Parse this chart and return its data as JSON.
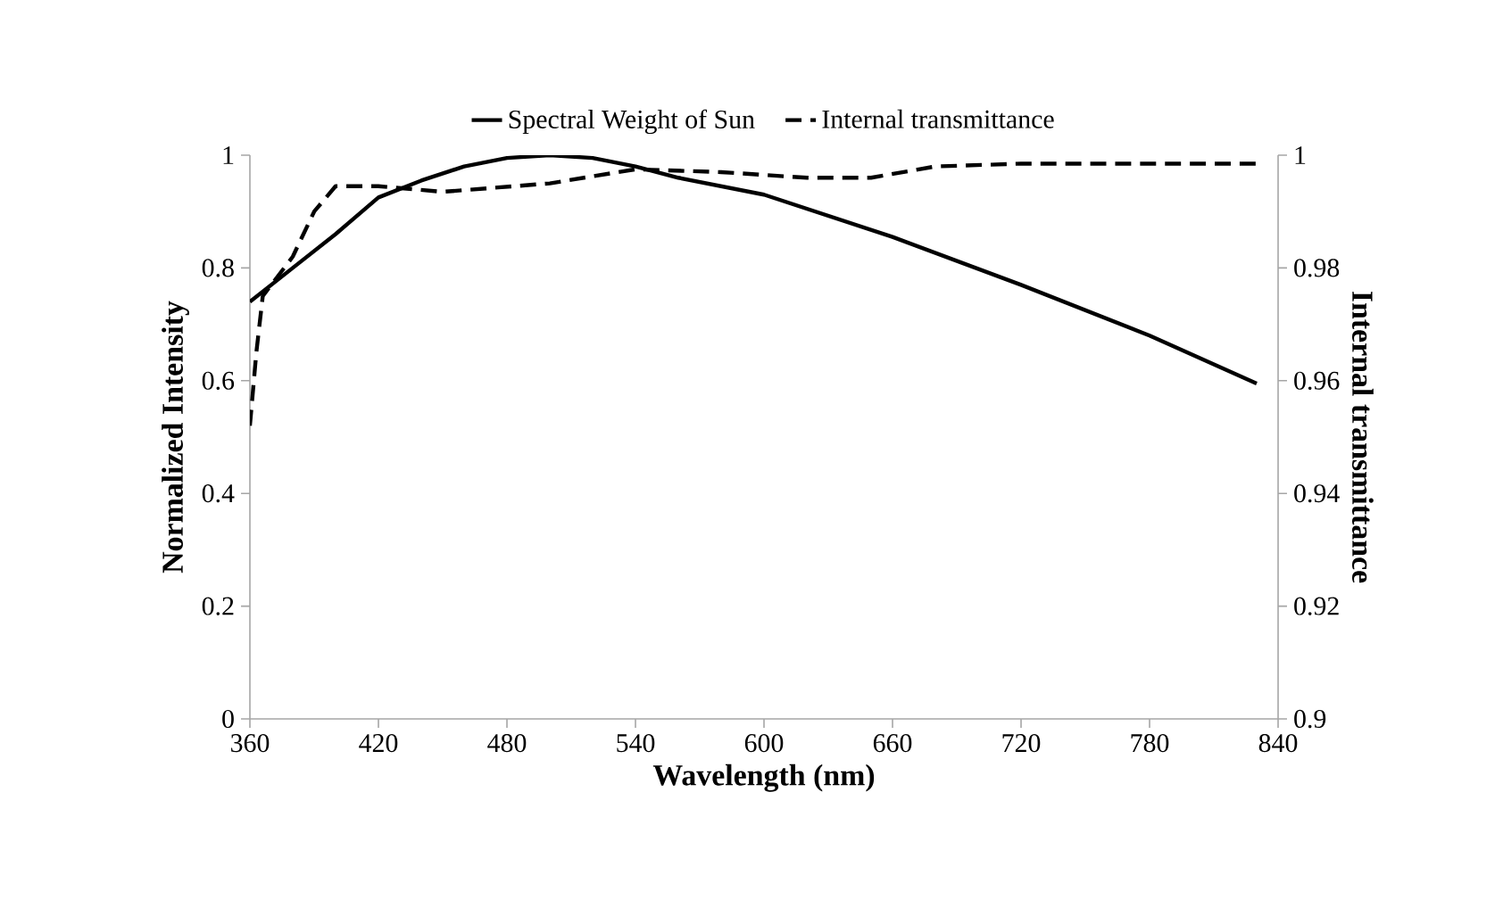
{
  "chart_data": {
    "type": "line",
    "xlabel": "Wavelength (nm)",
    "ylabel": "Normalized Intensity",
    "y2label": "Internal transmittance",
    "xlim": [
      360,
      840
    ],
    "xticks": [
      360,
      420,
      480,
      540,
      600,
      660,
      720,
      780,
      840
    ],
    "ylim": [
      0,
      1
    ],
    "yticks": [
      0,
      0.2,
      0.4,
      0.6,
      0.8,
      1
    ],
    "y2lim": [
      0.9,
      1
    ],
    "y2ticks": [
      0.9,
      0.92,
      0.94,
      0.96,
      0.98,
      1
    ],
    "legend": "top",
    "marker": "none",
    "series": [
      {
        "name": "Spectral Weight of Sun",
        "color": "#000000",
        "line_style": "solid",
        "axis": "y",
        "x": [
          360,
          380,
          400,
          420,
          440,
          460,
          480,
          500,
          520,
          540,
          560,
          600,
          660,
          720,
          780,
          830
        ],
        "values": [
          0.74,
          0.8,
          0.86,
          0.925,
          0.955,
          0.98,
          0.995,
          1.0,
          0.995,
          0.98,
          0.96,
          0.93,
          0.855,
          0.77,
          0.68,
          0.595
        ]
      },
      {
        "name": "Internal transmittance",
        "color": "#000000",
        "line_style": "dashed",
        "axis": "y2",
        "x": [
          360,
          363,
          366,
          380,
          390,
          400,
          420,
          450,
          500,
          540,
          580,
          620,
          650,
          680,
          720,
          780,
          830
        ],
        "values": [
          0.952,
          0.965,
          0.975,
          0.982,
          0.99,
          0.9945,
          0.9945,
          0.9935,
          0.995,
          0.9975,
          0.997,
          0.996,
          0.996,
          0.998,
          0.9985,
          0.9985,
          0.9985
        ]
      }
    ]
  }
}
